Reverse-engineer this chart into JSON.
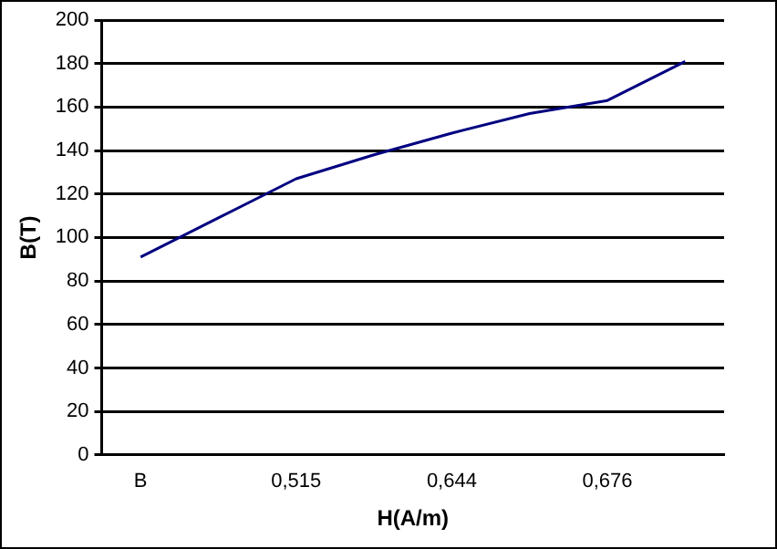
{
  "chart_data": {
    "type": "line",
    "xlabel": "H(A/m)",
    "ylabel": "B(T)",
    "categories": [
      "B",
      null,
      "0,515",
      null,
      "0,644",
      null,
      "0,676",
      null
    ],
    "series": [
      {
        "color": "#000080",
        "values": [
          91,
          109,
          127,
          138,
          148,
          157,
          163,
          181
        ]
      }
    ],
    "ylim": [
      0,
      200
    ],
    "yticks": [
      0,
      20,
      40,
      60,
      80,
      100,
      120,
      140,
      160,
      180,
      200
    ],
    "grid": "y",
    "legend": false,
    "marker": "none",
    "line_style": "solid"
  }
}
